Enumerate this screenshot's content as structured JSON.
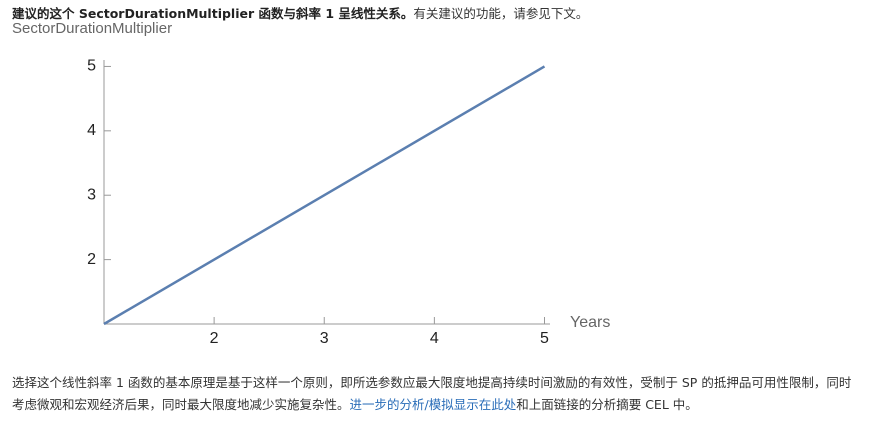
{
  "header": {
    "bold": "建议的这个 SectorDurationMultiplier 函数与斜率 1 呈线性关系。",
    "normal": "有关建议的功能，请参见下文。"
  },
  "chart_data": {
    "type": "line",
    "title": "SectorDurationMultiplier",
    "x_label": "Years",
    "x": [
      1,
      5
    ],
    "values": [
      1,
      5
    ],
    "color": "#5b7fb0",
    "xlim": [
      1,
      5.05
    ],
    "ylim": [
      1,
      5.1
    ],
    "xticks": [
      2,
      3,
      4,
      5
    ],
    "yticks": [
      2,
      3,
      4,
      5
    ]
  },
  "body": {
    "text": "选择这个线性斜率 1 函数的基本原理是基于这样一个原则，即所选参数应最大限度地提高持续时间激励的有效性，受制于 SP 的抵押品可用性限制，同时考虑微观和宏观经济后果，同时最大限度地减少实施复杂性。",
    "link": "进一步的分析/模拟显示在此处",
    "tail": "和上面链接的分析摘要 CEL 中。"
  }
}
